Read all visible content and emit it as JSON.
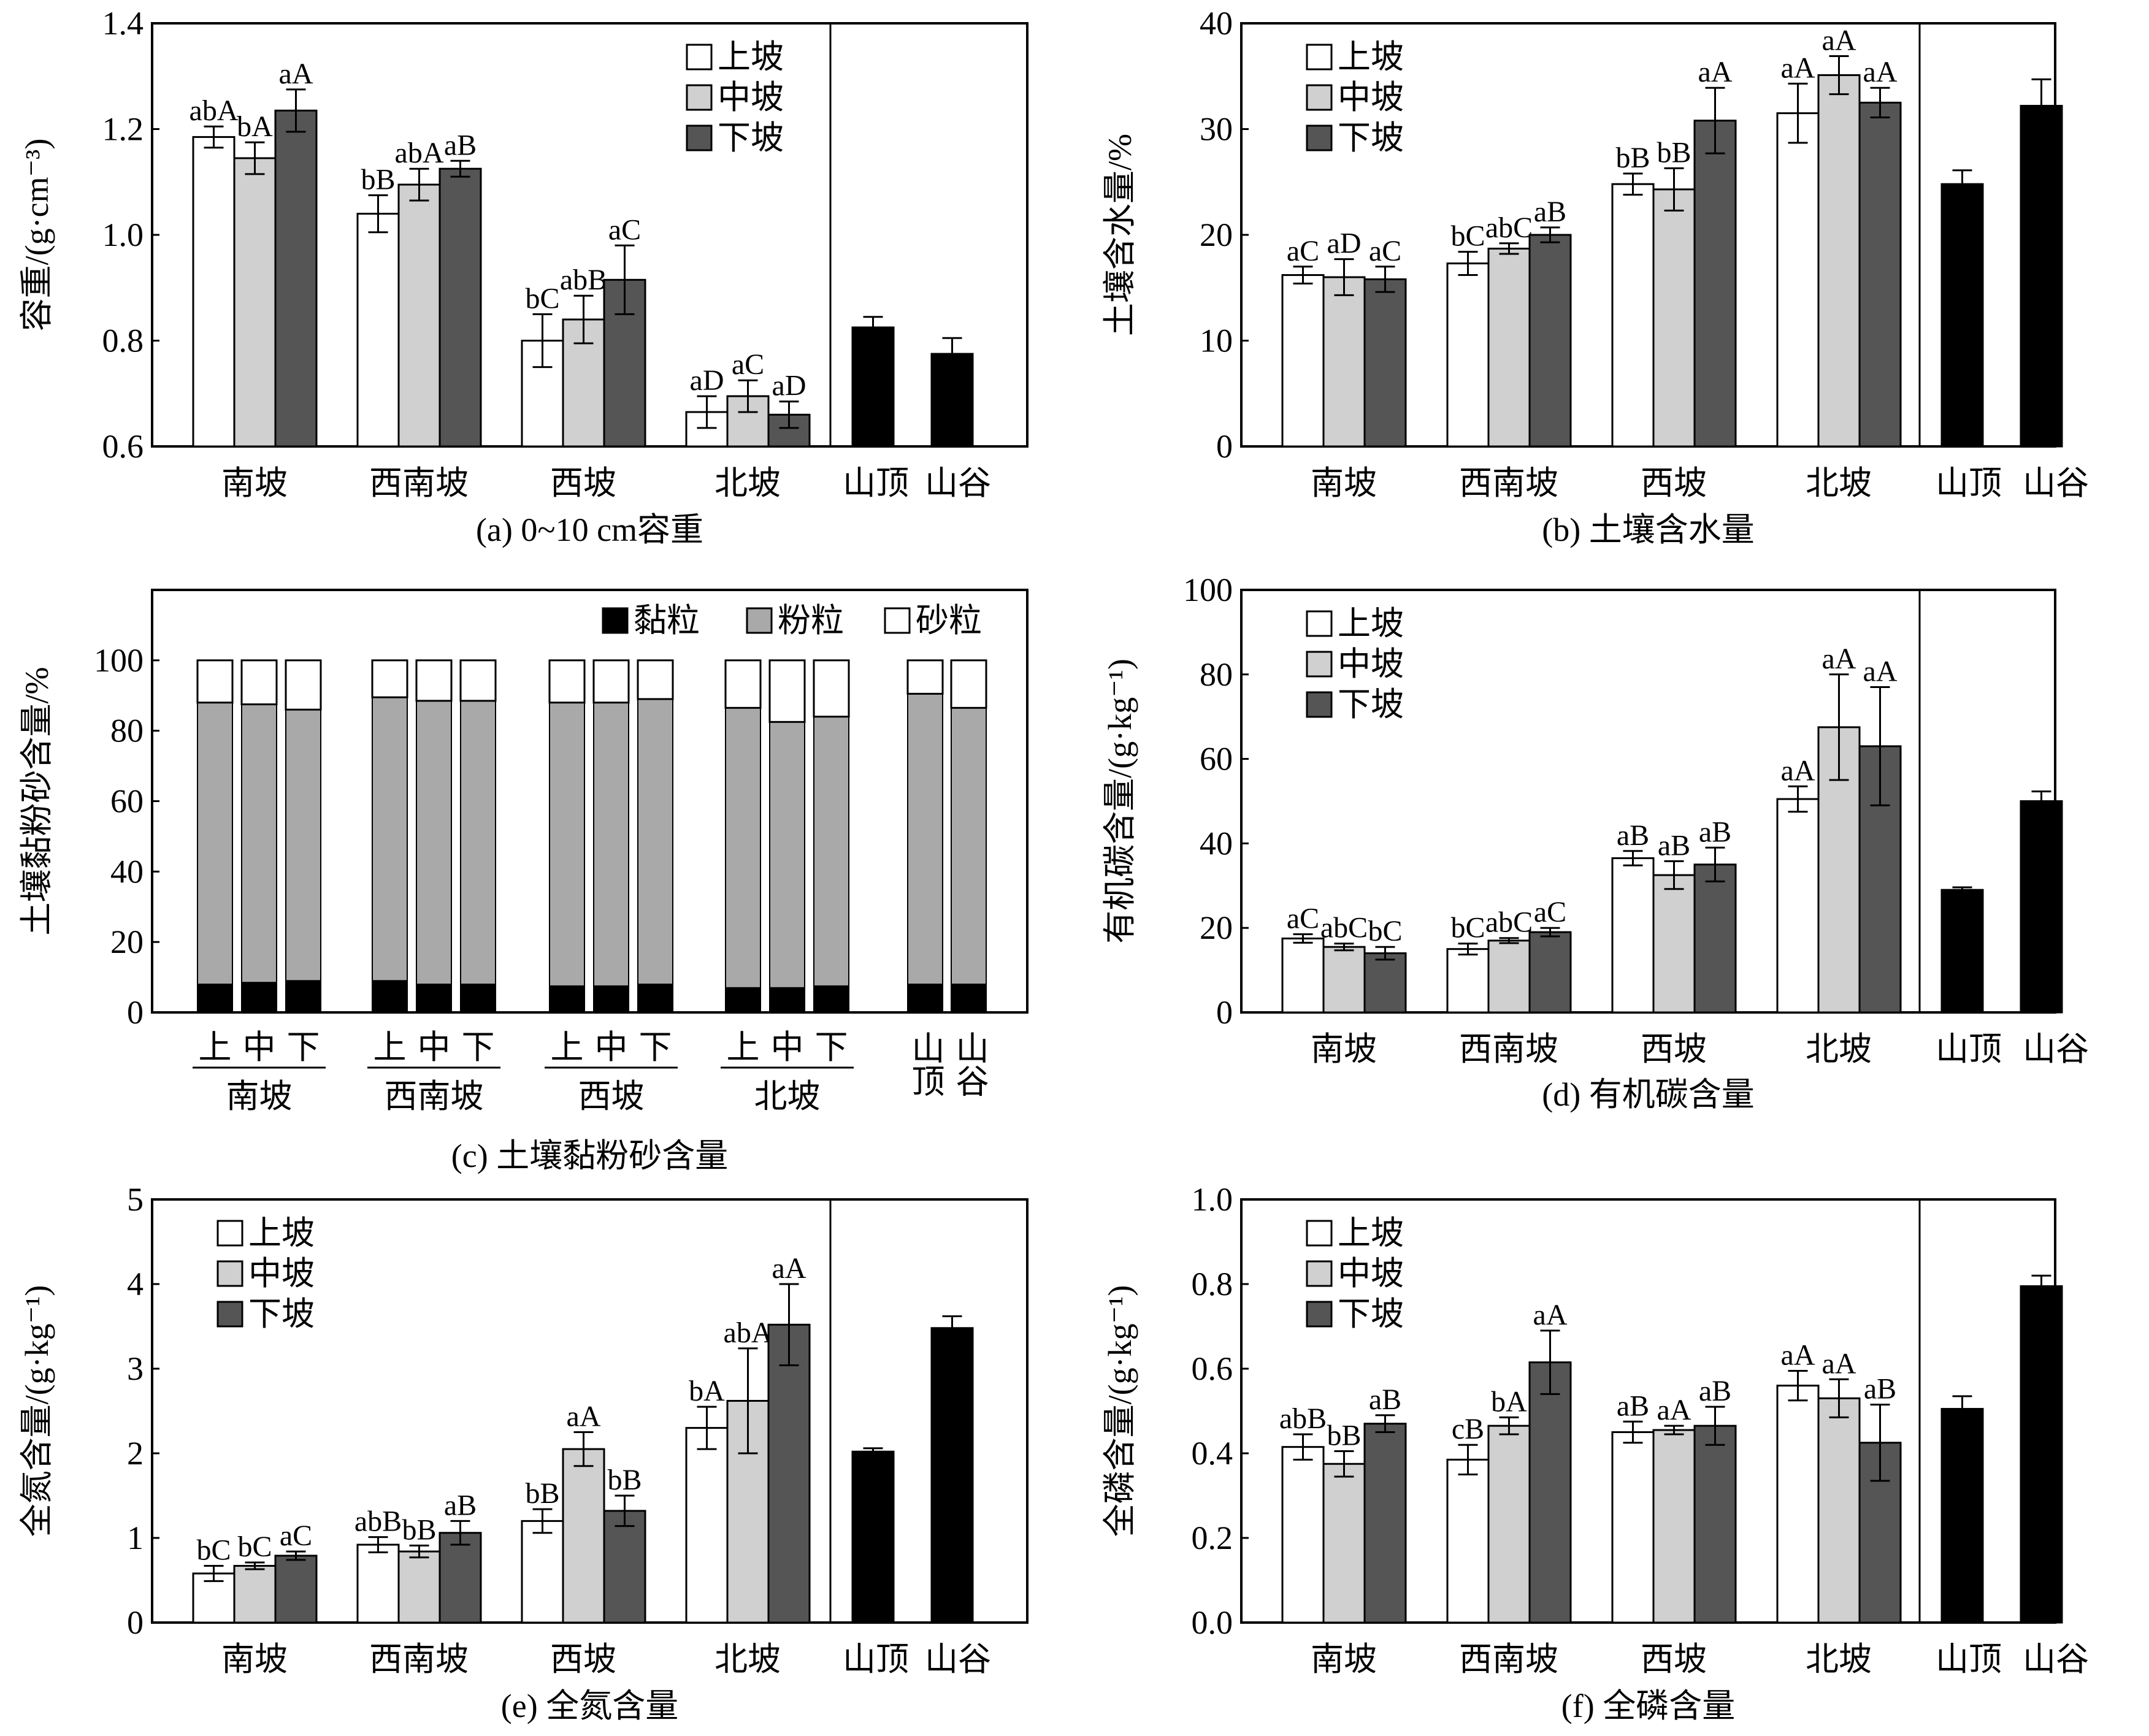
{
  "colors": {
    "upper": "#ffffff",
    "middle": "#d0d0d0",
    "lower": "#555555",
    "special": "#000000",
    "clay": "#000000",
    "silt": "#a9a9a9",
    "sand": "#ffffff"
  },
  "chart_data": [
    {
      "type": "bar",
      "caption": "(a) 0~10 cm容重",
      "ylabel": "容重/(g·cm⁻³)",
      "ylim": [
        0.6,
        1.4
      ],
      "yticks": [
        0.6,
        0.8,
        1.0,
        1.2,
        1.4
      ],
      "tick_format": "%.1f",
      "categories": [
        "南坡",
        "西南坡",
        "西坡",
        "北坡"
      ],
      "special_categories": [
        "山顶",
        "山谷"
      ],
      "legend": [
        "上坡",
        "中坡",
        "下坡"
      ],
      "legend_position": "top-right",
      "series": [
        {
          "name": "上坡",
          "values": [
            1.185,
            1.04,
            0.8,
            0.665
          ],
          "errors": [
            0.02,
            0.035,
            0.05,
            0.03
          ],
          "labels": [
            "abA",
            "bB",
            "bC",
            "aD"
          ]
        },
        {
          "name": "中坡",
          "values": [
            1.145,
            1.095,
            0.84,
            0.695
          ],
          "errors": [
            0.03,
            0.03,
            0.045,
            0.03
          ],
          "labels": [
            "bA",
            "abA",
            "abB",
            "aC"
          ]
        },
        {
          "name": "下坡",
          "values": [
            1.235,
            1.125,
            0.915,
            0.66
          ],
          "errors": [
            0.04,
            0.015,
            0.065,
            0.025
          ],
          "labels": [
            "aA",
            "aB",
            "aC",
            "aD"
          ]
        }
      ],
      "special": {
        "values": [
          0.825,
          0.775
        ],
        "errors": [
          0.02,
          0.03
        ]
      }
    },
    {
      "type": "bar",
      "caption": "(b) 土壤含水量",
      "ylabel": "土壤含水量/%",
      "ylim": [
        0,
        40
      ],
      "yticks": [
        0,
        10,
        20,
        30,
        40
      ],
      "tick_format": "%d",
      "categories": [
        "南坡",
        "西南坡",
        "西坡",
        "北坡"
      ],
      "special_categories": [
        "山顶",
        "山谷"
      ],
      "legend": [
        "上坡",
        "中坡",
        "下坡"
      ],
      "legend_position": "top-left",
      "series": [
        {
          "name": "上坡",
          "values": [
            16.2,
            17.3,
            24.8,
            31.5
          ],
          "errors": [
            0.8,
            1.1,
            1.0,
            2.8
          ],
          "labels": [
            "aC",
            "bC",
            "bB",
            "aA"
          ]
        },
        {
          "name": "中坡",
          "values": [
            16.0,
            18.7,
            24.3,
            35.1
          ],
          "errors": [
            1.7,
            0.5,
            2.0,
            1.8
          ],
          "labels": [
            "aD",
            "abC",
            "bB",
            "aA"
          ]
        },
        {
          "name": "下坡",
          "values": [
            15.8,
            20.0,
            30.8,
            32.5
          ],
          "errors": [
            1.2,
            0.7,
            3.1,
            1.4
          ],
          "labels": [
            "aC",
            "aB",
            "aA",
            "aA"
          ]
        }
      ],
      "special": {
        "values": [
          24.8,
          32.2
        ],
        "errors": [
          1.3,
          2.5
        ]
      }
    },
    {
      "type": "stacked_bar",
      "caption": "(c) 土壤黏粉砂含量",
      "ylabel": "土壤黏粉砂含量/%",
      "ylim": [
        0,
        120
      ],
      "yticks": [
        0,
        20,
        40,
        60,
        80,
        100
      ],
      "tick_format": "%d",
      "legend": [
        "黏粒",
        "粉粒",
        "砂粒"
      ],
      "legend_position": "top-right",
      "groups": [
        {
          "name": "南坡",
          "bars": [
            "上",
            "中",
            "下"
          ]
        },
        {
          "name": "西南坡",
          "bars": [
            "上",
            "中",
            "下"
          ]
        },
        {
          "name": "西坡",
          "bars": [
            "上",
            "中",
            "下"
          ]
        },
        {
          "name": "北坡",
          "bars": [
            "上",
            "中",
            "下"
          ]
        }
      ],
      "special_group": {
        "bars": [
          "山顶",
          "山谷"
        ]
      },
      "clay": [
        8.0,
        8.5,
        9.0,
        9.0,
        8.0,
        8.0,
        7.5,
        7.5,
        8.0,
        7.0,
        7.0,
        7.5,
        8.0,
        8.0
      ],
      "silt": [
        80.0,
        79.0,
        77.0,
        80.5,
        80.5,
        80.5,
        80.5,
        80.5,
        81.0,
        79.5,
        75.5,
        76.5,
        82.5,
        78.5
      ],
      "sand": [
        12.0,
        12.5,
        14.0,
        10.5,
        11.5,
        11.5,
        12.0,
        12.0,
        11.0,
        13.5,
        17.5,
        16.0,
        9.5,
        13.5
      ]
    },
    {
      "type": "bar",
      "caption": "(d) 有机碳含量",
      "ylabel": "有机碳含量/(g·kg⁻¹)",
      "ylim": [
        0,
        100
      ],
      "yticks": [
        0,
        20,
        40,
        60,
        80,
        100
      ],
      "tick_format": "%d",
      "categories": [
        "南坡",
        "西南坡",
        "西坡",
        "北坡"
      ],
      "special_categories": [
        "山顶",
        "山谷"
      ],
      "legend": [
        "上坡",
        "中坡",
        "下坡"
      ],
      "legend_position": "top-left",
      "series": [
        {
          "name": "上坡",
          "values": [
            17.5,
            15.0,
            36.5,
            50.5
          ],
          "errors": [
            1.0,
            1.3,
            1.7,
            3.0
          ],
          "labels": [
            "aC",
            "bC",
            "aB",
            "aA"
          ]
        },
        {
          "name": "中坡",
          "values": [
            15.5,
            17.0,
            32.5,
            67.5
          ],
          "errors": [
            0.8,
            0.6,
            3.3,
            12.5
          ],
          "labels": [
            "abC",
            "abC",
            "aB",
            "aA"
          ]
        },
        {
          "name": "下坡",
          "values": [
            14.0,
            19.0,
            35.0,
            63.0
          ],
          "errors": [
            1.5,
            1.0,
            4.0,
            14.0
          ],
          "labels": [
            "bC",
            "aC",
            "aB",
            "aA"
          ]
        }
      ],
      "special": {
        "values": [
          29.0,
          50.0
        ],
        "errors": [
          0.6,
          2.3
        ]
      }
    },
    {
      "type": "bar",
      "caption": "(e) 全氮含量",
      "ylabel": "全氮含量/(g·kg⁻¹)",
      "ylim": [
        0,
        5
      ],
      "yticks": [
        0,
        1,
        2,
        3,
        4,
        5
      ],
      "tick_format": "%d",
      "categories": [
        "南坡",
        "西南坡",
        "西坡",
        "北坡"
      ],
      "special_categories": [
        "山顶",
        "山谷"
      ],
      "legend": [
        "上坡",
        "中坡",
        "下坡"
      ],
      "legend_position": "top-left",
      "series": [
        {
          "name": "上坡",
          "values": [
            0.58,
            0.92,
            1.2,
            2.3
          ],
          "errors": [
            0.09,
            0.09,
            0.14,
            0.25
          ],
          "labels": [
            "bC",
            "abB",
            "bB",
            "bA"
          ]
        },
        {
          "name": "中坡",
          "values": [
            0.67,
            0.84,
            2.05,
            2.62
          ],
          "errors": [
            0.04,
            0.07,
            0.2,
            0.62
          ],
          "labels": [
            "bC",
            "bB",
            "aA",
            "abA"
          ]
        },
        {
          "name": "下坡",
          "values": [
            0.79,
            1.06,
            1.32,
            3.52
          ],
          "errors": [
            0.05,
            0.14,
            0.18,
            0.48
          ],
          "labels": [
            "aC",
            "aB",
            "bB",
            "aA"
          ]
        }
      ],
      "special": {
        "values": [
          2.02,
          3.48
        ],
        "errors": [
          0.04,
          0.14
        ]
      }
    },
    {
      "type": "bar",
      "caption": "(f) 全磷含量",
      "ylabel": "全磷含量/(g·kg⁻¹)",
      "ylim": [
        0,
        1.0
      ],
      "yticks": [
        0,
        0.2,
        0.4,
        0.6,
        0.8,
        1.0
      ],
      "tick_format": "%.1f",
      "categories": [
        "南坡",
        "西南坡",
        "西坡",
        "北坡"
      ],
      "special_categories": [
        "山顶",
        "山谷"
      ],
      "legend": [
        "上坡",
        "中坡",
        "下坡"
      ],
      "legend_position": "top-left",
      "series": [
        {
          "name": "上坡",
          "values": [
            0.415,
            0.385,
            0.45,
            0.56
          ],
          "errors": [
            0.03,
            0.035,
            0.025,
            0.035
          ],
          "labels": [
            "abB",
            "cB",
            "aB",
            "aA"
          ]
        },
        {
          "name": "中坡",
          "values": [
            0.375,
            0.465,
            0.455,
            0.53
          ],
          "errors": [
            0.03,
            0.02,
            0.01,
            0.045
          ],
          "labels": [
            "bB",
            "bA",
            "aA",
            "aA"
          ]
        },
        {
          "name": "下坡",
          "values": [
            0.47,
            0.615,
            0.465,
            0.425
          ],
          "errors": [
            0.02,
            0.075,
            0.045,
            0.09
          ],
          "labels": [
            "aB",
            "aA",
            "aB",
            "aB"
          ]
        }
      ],
      "special": {
        "values": [
          0.505,
          0.795
        ],
        "errors": [
          0.03,
          0.025
        ]
      }
    }
  ]
}
